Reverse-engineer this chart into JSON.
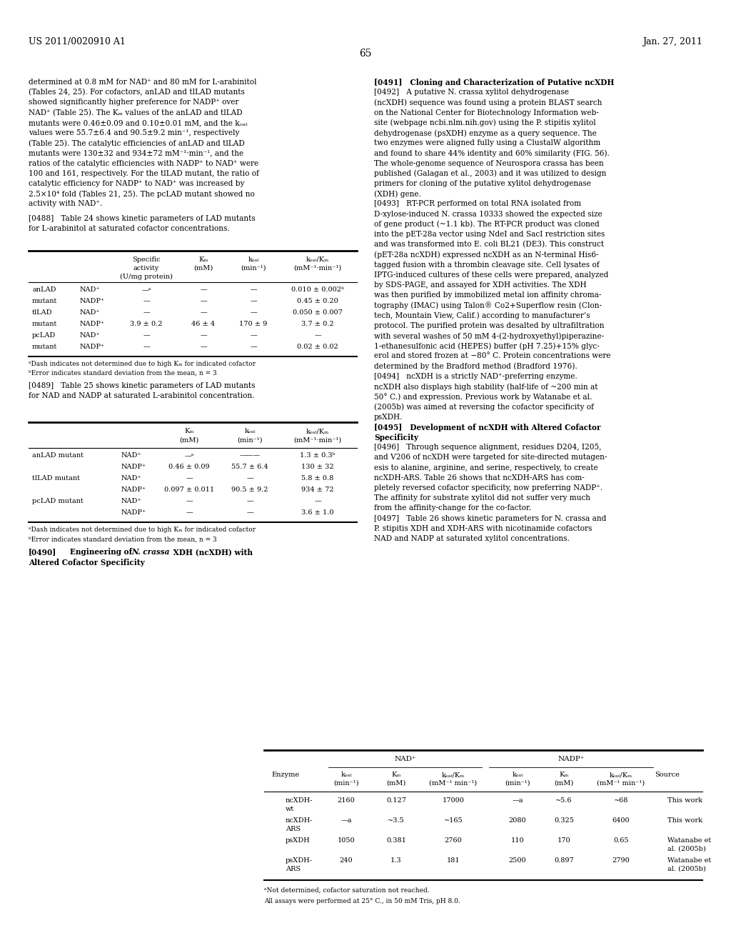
{
  "header_left": "US 2011/0020910 A1",
  "header_right": "Jan. 27, 2011",
  "page_number": "65",
  "background_color": "#ffffff"
}
